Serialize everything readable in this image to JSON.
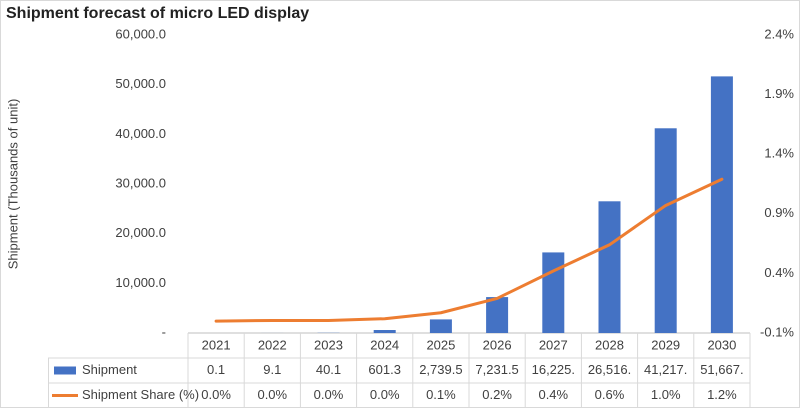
{
  "chart_data": {
    "type": "bar",
    "title": "Shipment forecast of micro LED display",
    "y_label": "Shipment (Thousands of unit)",
    "categories": [
      "2021",
      "2022",
      "2023",
      "2024",
      "2025",
      "2026",
      "2027",
      "2028",
      "2029",
      "2030"
    ],
    "series": [
      {
        "name": "Shipment",
        "color": "#4472c4",
        "type": "bar",
        "values": [
          0.1,
          9.1,
          40.1,
          601.3,
          2739.5,
          7231.5,
          16225,
          26516,
          41217,
          51667
        ],
        "value_labels": [
          "0.1",
          "9.1",
          "40.1",
          "601.3",
          "2,739.5",
          "7,231.5",
          "16,225.",
          "26,516.",
          "41,217.",
          "51,667."
        ]
      },
      {
        "name": "Shipment Share (%)",
        "color": "#ed7d31",
        "type": "line",
        "axis": "y2",
        "values": [
          0.0,
          0.005,
          0.005,
          0.02,
          0.07,
          0.19,
          0.42,
          0.64,
          0.97,
          1.19
        ],
        "value_labels": [
          "0.0%",
          "0.0%",
          "0.0%",
          "0.0%",
          "0.1%",
          "0.2%",
          "0.4%",
          "0.6%",
          "1.0%",
          "1.2%"
        ]
      }
    ],
    "ylim": [
      0,
      60000
    ],
    "yticks": [
      {
        "value": 0,
        "label": "-"
      },
      {
        "value": 10000,
        "label": "10,000.0"
      },
      {
        "value": 20000,
        "label": "20,000.0"
      },
      {
        "value": 30000,
        "label": "30,000.0"
      },
      {
        "value": 40000,
        "label": "40,000.0"
      },
      {
        "value": 50000,
        "label": "50,000.0"
      },
      {
        "value": 60000,
        "label": "60,000.0"
      }
    ],
    "y2lim": [
      -0.1,
      2.4
    ],
    "y2ticks": [
      {
        "value": -0.1,
        "label": "-0.1%"
      },
      {
        "value": 0.4,
        "label": "0.4%"
      },
      {
        "value": 0.9,
        "label": "0.9%"
      },
      {
        "value": 1.4,
        "label": "1.4%"
      },
      {
        "value": 1.9,
        "label": "1.9%"
      },
      {
        "value": 2.4,
        "label": "2.4%"
      }
    ],
    "grid": false
  }
}
